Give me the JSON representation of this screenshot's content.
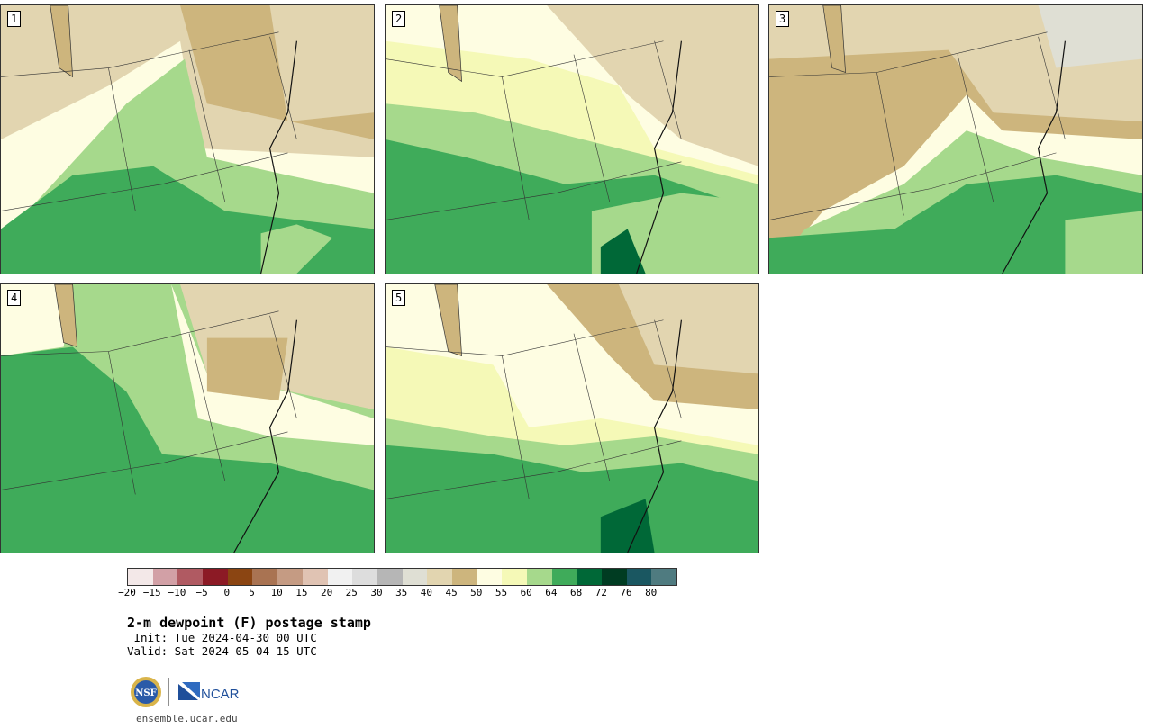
{
  "panels": [
    {
      "label": "1",
      "palette": [
        "#cdb57d",
        "#e2d5b0",
        "#fefde2",
        "#a6d98c",
        "#3fab5a",
        "#cdb57d",
        "#fefde2",
        "#a6d98c"
      ]
    },
    {
      "label": "2",
      "palette": [
        "#fefde2",
        "#e2d5b0",
        "#f5f9b7",
        "#a6d98c",
        "#3fab5a",
        "#a6d98c",
        "#3fab5a",
        "#006837"
      ]
    },
    {
      "label": "3",
      "palette": [
        "#e2d5b0",
        "#cdb57d",
        "#e2d5b0",
        "#fefde2",
        "#a6d98c",
        "#3fab5a",
        "#a6d98c",
        "#3fab5a"
      ]
    },
    {
      "label": "4",
      "palette": [
        "#fefde2",
        "#a6d98c",
        "#cdb57d",
        "#e2d5b0",
        "#a6d98c",
        "#3fab5a",
        "#a6d98c",
        "#3fab5a"
      ]
    },
    {
      "label": "5",
      "palette": [
        "#cdb57d",
        "#fefde2",
        "#f5f9b7",
        "#a6d98c",
        "#3fab5a",
        "#a6d98c",
        "#3fab5a",
        "#006837"
      ]
    }
  ],
  "colorbar": {
    "colors": [
      "#f3e8e8",
      "#d2a0a6",
      "#b05a62",
      "#8c1a25",
      "#8b4512",
      "#a97352",
      "#c59b83",
      "#e0c3b3",
      "#f1f1f1",
      "#dddddd",
      "#b6b6b6",
      "#dfdfd4",
      "#e2d5b0",
      "#cdb57d",
      "#fefde2",
      "#f5f9b7",
      "#a6d98c",
      "#3fab5a",
      "#006837",
      "#003c22",
      "#1a5761",
      "#4f7b80"
    ],
    "ticks": [
      "−20",
      "−15",
      "−10",
      "−5",
      "0",
      "5",
      "10",
      "15",
      "20",
      "25",
      "30",
      "35",
      "40",
      "45",
      "50",
      "55",
      "60",
      "64",
      "68",
      "72",
      "76",
      "80"
    ]
  },
  "title": "2-m dewpoint (F) postage stamp",
  "init": " Init: Tue 2024-04-30 00 UTC",
  "valid": "Valid: Sat 2024-05-04 15 UTC",
  "logos": {
    "nsf": "NSF",
    "ncar": "NCAR"
  },
  "site": "ensemble.ucar.edu"
}
